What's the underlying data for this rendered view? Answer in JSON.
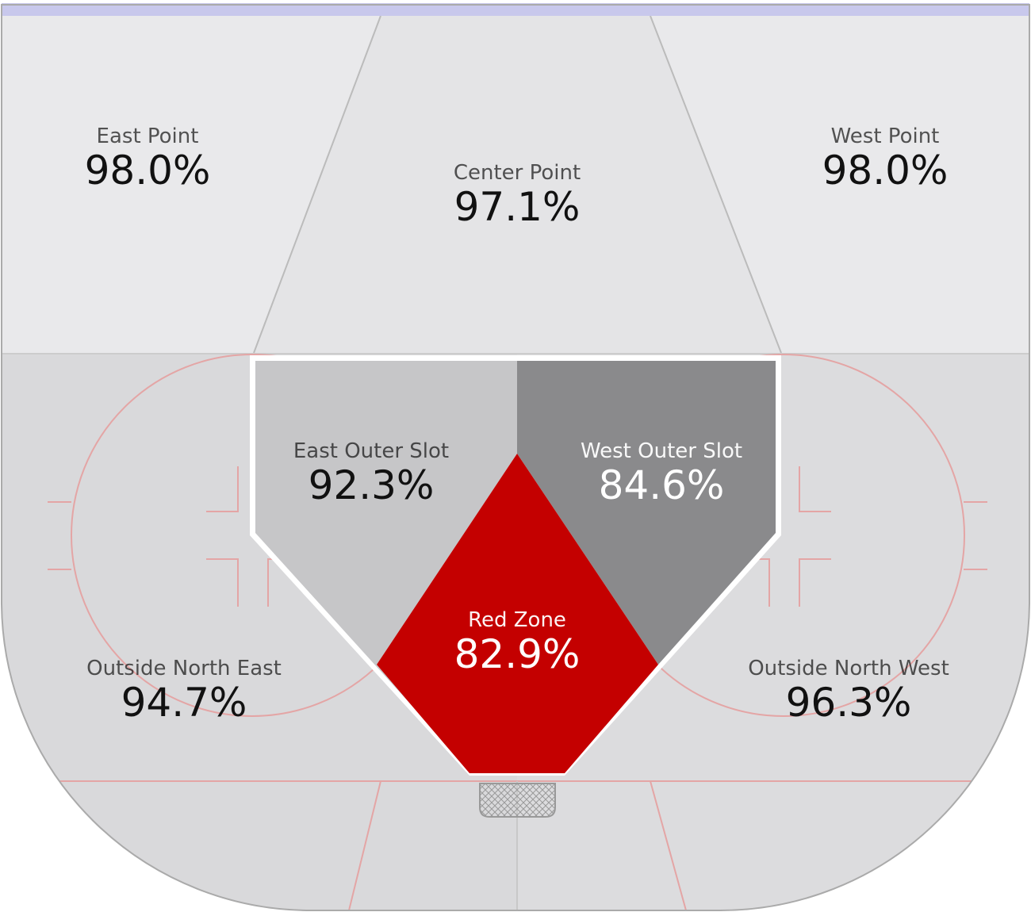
{
  "zones": [
    {
      "name": "East Point",
      "value": "98.0%",
      "color": "#e9e9eb",
      "text_color": "#111111"
    },
    {
      "name": "Center Point",
      "value": "97.1%",
      "color": "#e4e4e6",
      "text_color": "#111111"
    },
    {
      "name": "West Point",
      "value": "98.0%",
      "color": "#e9e9eb",
      "text_color": "#111111"
    },
    {
      "name": "East Outer Slot",
      "value": "92.3%",
      "color": "#c6c6c8",
      "text_color": "#111111"
    },
    {
      "name": "West Outer Slot",
      "value": "84.6%",
      "color": "#8a8a8c",
      "text_color": "#ffffff"
    },
    {
      "name": "Red Zone",
      "value": "82.9%",
      "color": "#c40000",
      "text_color": "#ffffff"
    },
    {
      "name": "Outside North East",
      "value": "94.7%",
      "color": "#d9d9db",
      "text_color": "#111111"
    },
    {
      "name": "Outside North West",
      "value": "96.3%",
      "color": "#dcdcde",
      "text_color": "#111111"
    }
  ]
}
